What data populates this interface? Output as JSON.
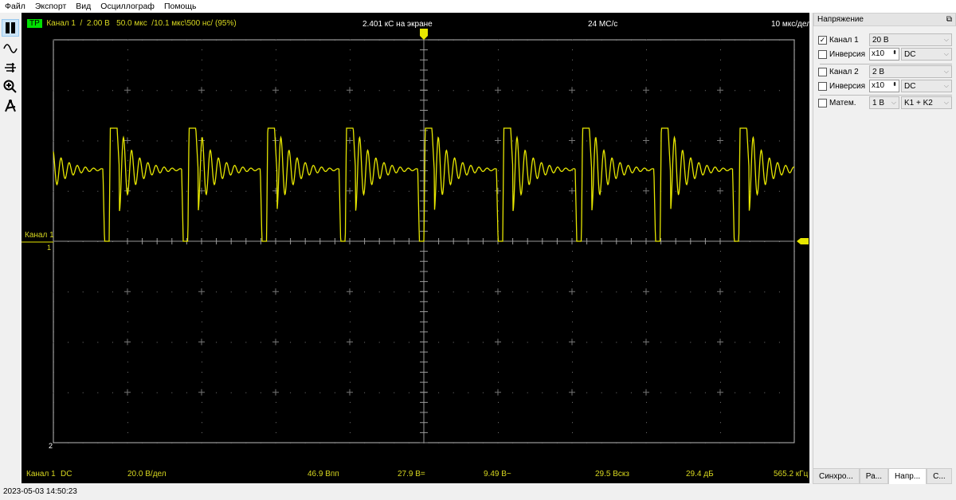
{
  "menu": [
    "Файл",
    "Экспорт",
    "Вид",
    "Осциллограф",
    "Помощь"
  ],
  "toolbar": [
    {
      "icon": "pause-icon"
    },
    {
      "icon": "sine-wave-icon"
    },
    {
      "icon": "levels-icon"
    },
    {
      "icon": "zoom-in-icon"
    },
    {
      "icon": "measure-icon"
    }
  ],
  "scope": {
    "trigger_badge": "TP",
    "header_info": "Канал 1  /  2.00 В   50.0 мкс  /10.1 мкс\\500 нс/ (95%)",
    "samples_on_screen": "2.401 кС на экране",
    "sample_rate": "24 МС/с",
    "timebase": "10 мкс/дел",
    "channel_label": "Канал 1",
    "marker_1": "1",
    "marker_2": "2",
    "trace_color": "#e6e600",
    "footer": {
      "channel": "Канал 1",
      "coupling": "DC",
      "scale": "20.0 В/дел",
      "vpp": "46.9 Впп",
      "vdc": "27.9 В=",
      "vac": "9.49 В~",
      "vrms": "29.5 Вскз",
      "db": "29.4 дБ",
      "freq": "565.2 кГц"
    }
  },
  "panel": {
    "title": "Напряжение",
    "ch1": {
      "label": "Канал 1",
      "checked": true,
      "range": "20 В",
      "inv_label": "Инверсия",
      "inv_checked": false,
      "probe": "x10",
      "coupling": "DC"
    },
    "ch2": {
      "label": "Канал 2",
      "checked": false,
      "range": "2 В",
      "inv_label": "Инверсия",
      "inv_checked": false,
      "probe": "x10",
      "coupling": "DC"
    },
    "math": {
      "label": "Матем.",
      "checked": false,
      "range": "1 В",
      "op": "K1 + K2"
    }
  },
  "tabs": [
    {
      "label": "Синхро...",
      "active": false
    },
    {
      "label": "Ра...",
      "active": false
    },
    {
      "label": "Напр...",
      "active": true
    },
    {
      "label": "С...",
      "active": false
    }
  ],
  "status": "2023-05-03 14:50:23"
}
